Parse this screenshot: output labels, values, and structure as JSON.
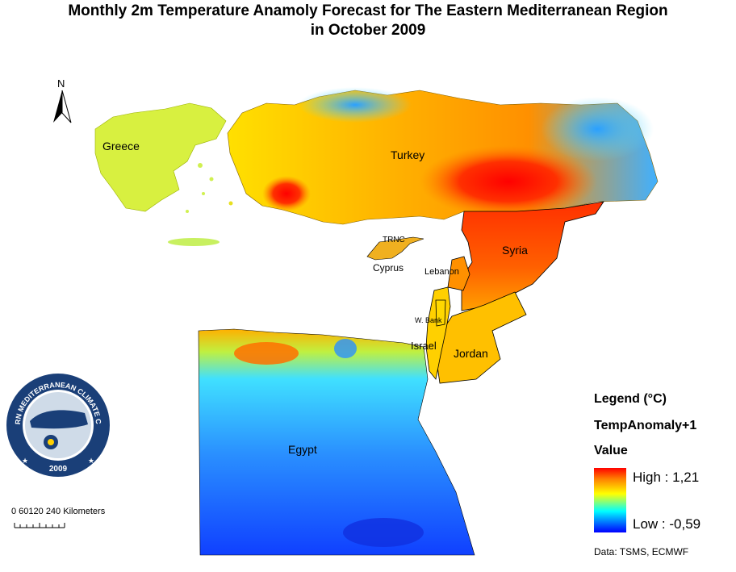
{
  "title_line1": "Monthly 2m Temperature Anamoly Forecast for  The Eastern Mediterranean Region",
  "title_line2": "in October 2009",
  "north_label": "N",
  "regions": [
    {
      "name": "Greece",
      "color": "#d8f040"
    },
    {
      "name": "Turkey",
      "color": "#ffc000"
    },
    {
      "name": "TRNC",
      "color": "#ffc000"
    },
    {
      "name": "Cyprus",
      "color": "#f0b020"
    },
    {
      "name": "Lebanon",
      "color": "#ff9000"
    },
    {
      "name": "Syria",
      "color": "#ff5000"
    },
    {
      "name": "W. Bank",
      "color": "#ffd000"
    },
    {
      "name": "Israel",
      "color": "#ffd000"
    },
    {
      "name": "Jordan",
      "color": "#ffc000"
    },
    {
      "name": "Egypt",
      "color": "#40a0ff"
    }
  ],
  "legend": {
    "title": "Legend (°C)",
    "field": "TempAnomaly+1",
    "value_label": "Value",
    "high": "High : 1,21",
    "low": "Low : -0,59",
    "high_value": 1.21,
    "low_value": -0.59,
    "colors": [
      "#ff0000",
      "#ff8000",
      "#ffff00",
      "#00ffff",
      "#0080ff",
      "#0000ff"
    ]
  },
  "scale_bar": {
    "label": "0 60120   240  Kilometers"
  },
  "source": "Data:  TSMS, ECMWF",
  "logo": {
    "ring_text": "EASTERN MEDITERRANEAN CLIMATE CENTRE",
    "year": "2009"
  }
}
